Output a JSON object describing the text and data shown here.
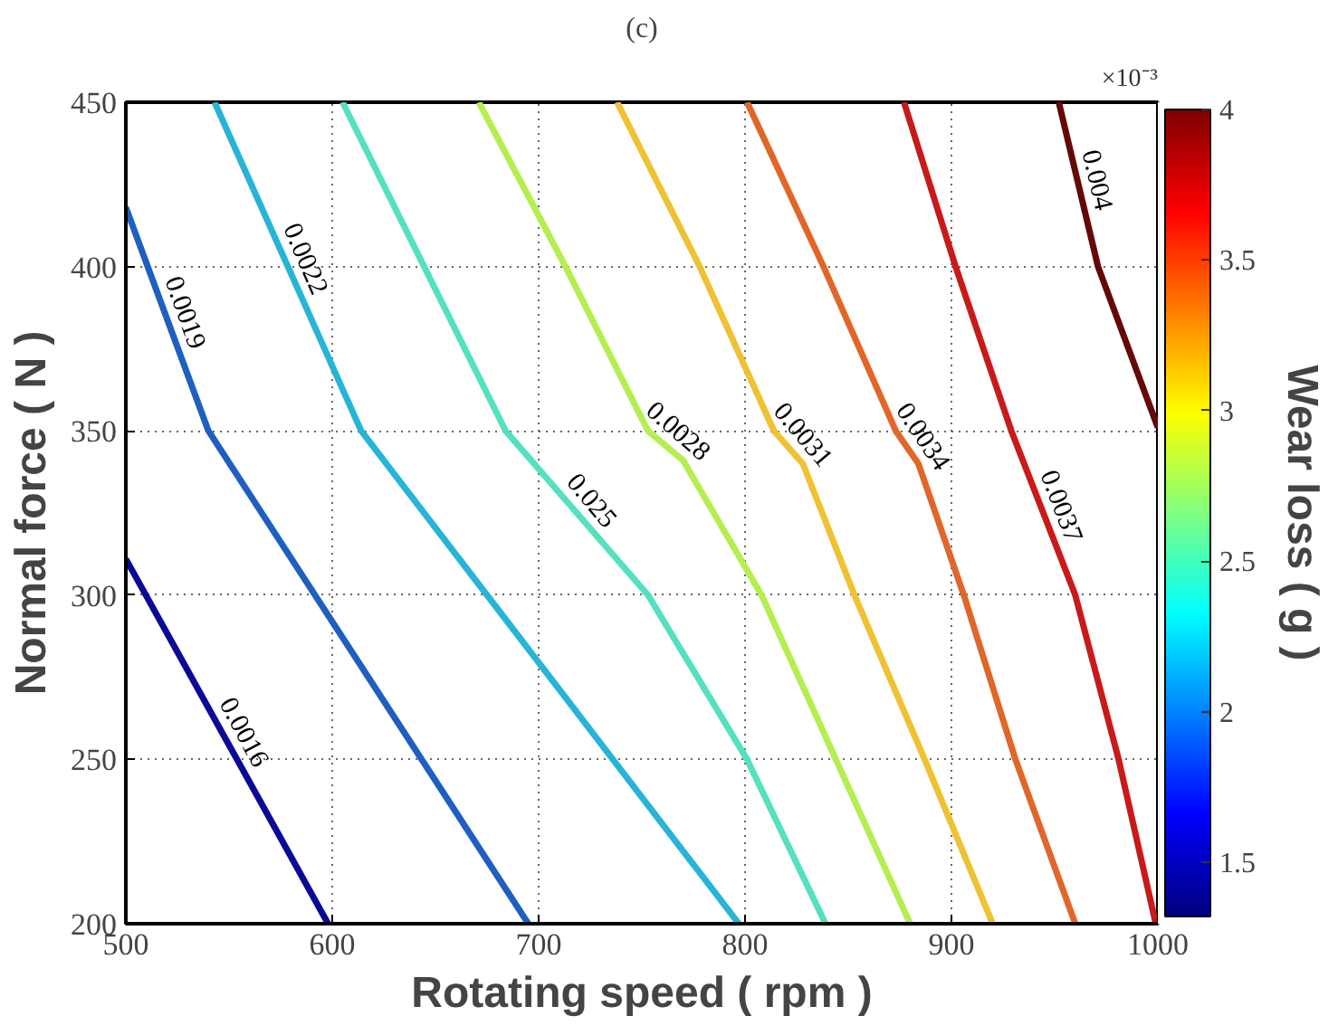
{
  "chart_data": {
    "type": "line",
    "title": "(c)",
    "xlabel": "Rotating speed ( rpm )",
    "ylabel": "Normal force ( N )",
    "clabel": "Wear loss ( g )",
    "annotations": [
      "×10⁻³"
    ],
    "xlim": [
      500,
      1000
    ],
    "ylim": [
      200,
      450
    ],
    "xticks": [
      500,
      600,
      700,
      800,
      900,
      1000
    ],
    "yticks": [
      200,
      250,
      300,
      350,
      400,
      450
    ],
    "clim": [
      1.32,
      4
    ],
    "cticks": [
      1.5,
      2,
      2.5,
      3,
      3.5,
      4
    ],
    "grid": true,
    "line_style": "solid",
    "marker": "none",
    "series": [
      {
        "name": "0.0016",
        "color": "#0a0a96",
        "x": [
          500,
          598
        ],
        "values": [
          311,
          200
        ]
      },
      {
        "name": "0.0019",
        "color": "#1f5fbf",
        "x": [
          500,
          540,
          695
        ],
        "values": [
          418,
          350,
          200
        ]
      },
      {
        "name": "0.0022",
        "color": "#28b4d6",
        "x": [
          543,
          614,
          797
        ],
        "values": [
          450,
          350,
          200
        ]
      },
      {
        "name": "0.025",
        "color": "#55e0c0",
        "x": [
          605,
          684,
          753,
          801,
          839
        ],
        "values": [
          450,
          350,
          300,
          250,
          200
        ]
      },
      {
        "name": "0.0028",
        "color": "#b4ee50",
        "x": [
          671,
          713,
          753,
          770,
          808,
          844,
          880
        ],
        "values": [
          450,
          400,
          350,
          341,
          300,
          250,
          200
        ]
      },
      {
        "name": "0.0031",
        "color": "#eec234",
        "x": [
          738,
          778,
          814,
          828,
          853,
          887,
          920
        ],
        "values": [
          450,
          400,
          350,
          340,
          300,
          250,
          200
        ]
      },
      {
        "name": "0.0034",
        "color": "#e0662a",
        "x": [
          801,
          838,
          873,
          884,
          906,
          931,
          960
        ],
        "values": [
          450,
          400,
          350,
          340,
          300,
          250,
          200
        ]
      },
      {
        "name": "0.0037",
        "color": "#c81a1a",
        "x": [
          877,
          902,
          929,
          960,
          981,
          999
        ],
        "values": [
          450,
          400,
          350,
          300,
          250,
          200
        ]
      },
      {
        "name": "0.004",
        "color": "#640808",
        "x": [
          952,
          971,
          1000
        ],
        "values": [
          450,
          400,
          351
        ]
      }
    ]
  }
}
